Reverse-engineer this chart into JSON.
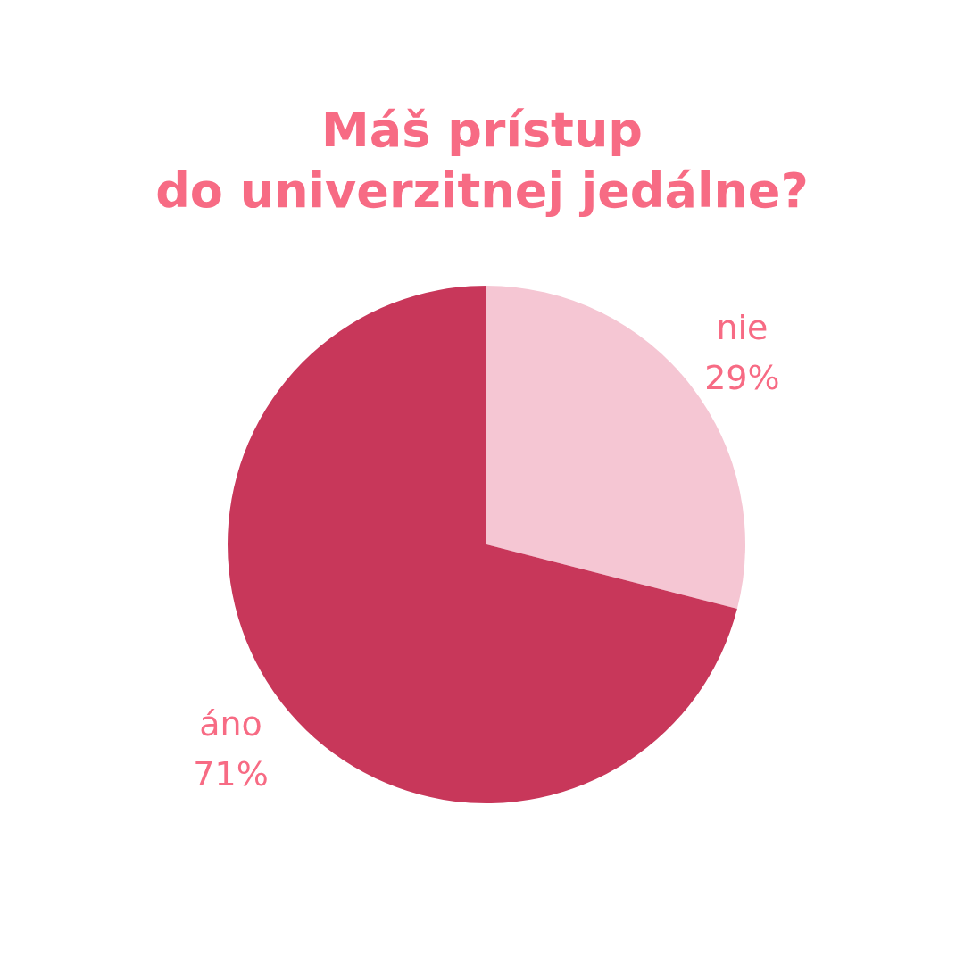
{
  "chart_data": {
    "type": "pie",
    "title": "Máš prístup\ndo univerzitnej jedálne?",
    "categories": [
      "nie",
      "áno"
    ],
    "values": [
      29,
      71
    ],
    "colors": [
      "#f5c6d3",
      "#c8375a"
    ],
    "value_labels": [
      "29%",
      "71%"
    ]
  }
}
